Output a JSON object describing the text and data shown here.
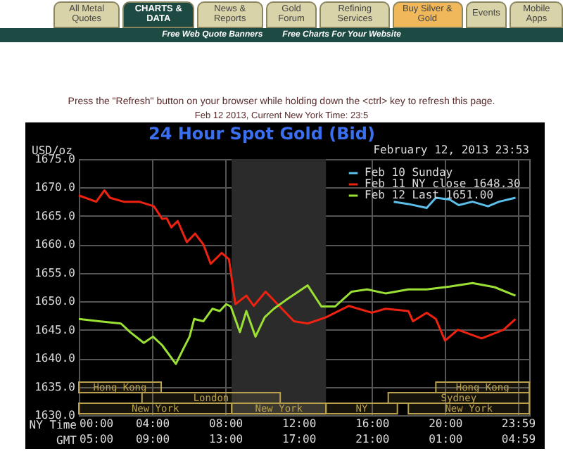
{
  "chart_data": {
    "type": "line",
    "title": "24 Hour Spot Gold (Bid)",
    "subtitle": "February 12, 2013 23:53",
    "ylabel": "USD/oz",
    "xlabel": "NY Time",
    "x2label": "GMT",
    "annotations": [
      "All Metal Quotes",
      "CHARTS & DATA",
      "News & Reports",
      "Gold Forum",
      "Refining Services",
      "Buy Silver & Gold",
      "Events",
      "Mobile Apps",
      "Free Web Quote Banners",
      "Free Charts For Your Website",
      "Press the \"Refresh\" button on your browser while holding down the <ctrl> key to refresh this page.",
      "Feb 12 2013, Current New York Time: 23:5"
    ],
    "xlim": [
      0,
      24.6
    ],
    "xticks": [
      {
        "value": 0,
        "label": "00:00"
      },
      {
        "value": 4,
        "label": "04:00"
      },
      {
        "value": 8,
        "label": "08:00"
      },
      {
        "value": 12,
        "label": "12:00"
      },
      {
        "value": 16,
        "label": "16:00"
      },
      {
        "value": 20,
        "label": "20:00"
      },
      {
        "value": 23.983,
        "label": "23:59"
      }
    ],
    "x2lim": [
      "2013-02-12T05:00",
      "2013-02-13T05:36"
    ],
    "x2ticks": [
      {
        "value": "2013-02-12T05:00",
        "label": "05:00"
      },
      {
        "value": "2013-02-12T09:00",
        "label": "09:00"
      },
      {
        "value": "2013-02-12T13:00",
        "label": "13:00"
      },
      {
        "value": "2013-02-12T17:00",
        "label": "17:00"
      },
      {
        "value": "2013-02-12T21:00",
        "label": "21:00"
      },
      {
        "value": "2013-02-13T01:00",
        "label": "01:00"
      },
      {
        "value": "2013-02-13T04:59",
        "label": "04:59"
      }
    ],
    "ylim": [
      1630,
      1675
    ],
    "yticks": [
      {
        "value": 1630,
        "label": "1630.0"
      },
      {
        "value": 1635,
        "label": "1635.0"
      },
      {
        "value": 1640,
        "label": "1640.0"
      },
      {
        "value": 1645,
        "label": "1645.0"
      },
      {
        "value": 1650,
        "label": "1650.0"
      },
      {
        "value": 1655,
        "label": "1655.0"
      },
      {
        "value": 1660,
        "label": "1660.0"
      },
      {
        "value": 1665,
        "label": "1665.0"
      },
      {
        "value": 1670,
        "label": "1670.0"
      },
      {
        "value": 1675,
        "label": "1675.0"
      }
    ],
    "grid": true,
    "legend": "top right",
    "bands": [
      {
        "axis": "x",
        "from": 8.35,
        "to": 13.5,
        "color": "#2b2b2b"
      },
      {
        "axis": "x",
        "from": 0,
        "to": 4.5,
        "label": "Hong Kong",
        "color": "#b8a050"
      },
      {
        "axis": "x",
        "from": 19.5,
        "to": 24.6,
        "label": "Hong Kong",
        "color": "#b8a050"
      },
      {
        "axis": "x",
        "from": 3.45,
        "to": 11,
        "label": "London",
        "color": "#b8a050"
      },
      {
        "axis": "x",
        "from": 16.9,
        "to": 24.6,
        "label": "Sydney",
        "color": "#b8a050"
      },
      {
        "axis": "x",
        "from": 0,
        "to": 8.35,
        "label": "New York",
        "color": "#b8a050"
      },
      {
        "axis": "x",
        "from": 8.35,
        "to": 13.5,
        "label": "New York",
        "color": "#b8a050"
      },
      {
        "axis": "x",
        "from": 13.5,
        "to": 17.4,
        "label": "NY",
        "color": "#b8a050"
      },
      {
        "axis": "x",
        "from": 18,
        "to": 24.6,
        "label": "New York",
        "color": "#b8a050"
      }
    ],
    "series": [
      {
        "name": "Feb 10 Sunday",
        "color": "#5bbfea",
        "x": [
          17.2,
          18,
          19,
          19.5,
          20.25,
          20.75,
          21.5,
          22.35,
          22.95,
          23.85
        ],
        "values": [
          1667.5,
          1667.1,
          1666.4,
          1668.2,
          1667.9,
          1666.9,
          1667.5,
          1666.7,
          1667.5,
          1668.2
        ]
      },
      {
        "name": "Feb 11 NY close 1648.30",
        "color": "#ee2211",
        "x": [
          0,
          0.95,
          1.4,
          1.7,
          2.45,
          3.3,
          4.1,
          4.55,
          4.8,
          5.05,
          5.4,
          5.9,
          6.35,
          6.8,
          7.2,
          7.8,
          8.2,
          8.55,
          9.15,
          9.55,
          10.2,
          11.75,
          12.5,
          13.5,
          14.75,
          16,
          16.75,
          18,
          18.25,
          19,
          19.5,
          20,
          20.7,
          22,
          23.2,
          23.85
        ],
        "values": [
          1668.6,
          1667.5,
          1669.5,
          1668.2,
          1667.5,
          1667.5,
          1666.7,
          1664.5,
          1664.6,
          1663,
          1664.1,
          1660.4,
          1661.9,
          1660,
          1656.6,
          1658.5,
          1657.4,
          1649.5,
          1651,
          1649.2,
          1651.7,
          1646.5,
          1646.1,
          1647.2,
          1649.2,
          1648,
          1648.7,
          1648.3,
          1646.5,
          1648,
          1646.9,
          1643.1,
          1645,
          1643.5,
          1645,
          1646.9
        ]
      },
      {
        "name": "Feb 12 Last 1651.00",
        "color": "#9be034",
        "x": [
          0,
          1.1,
          2.3,
          2.8,
          3.55,
          4.05,
          4.55,
          5.3,
          5.7,
          6.05,
          6.3,
          6.8,
          7.3,
          7.7,
          8.05,
          8.3,
          8.8,
          9.15,
          9.65,
          10.15,
          10.65,
          11.3,
          12.5,
          13.25,
          14,
          14.9,
          15.75,
          16.75,
          18,
          19,
          20.25,
          21.5,
          22.7,
          23.85
        ],
        "values": [
          1646.9,
          1646.5,
          1646.1,
          1644.6,
          1642.7,
          1643.8,
          1642.3,
          1639,
          1641.6,
          1643.8,
          1646.9,
          1646.5,
          1648.7,
          1648.3,
          1649.5,
          1649.1,
          1644.6,
          1648.3,
          1643.8,
          1647.2,
          1648.7,
          1650.2,
          1652.8,
          1649.1,
          1649.1,
          1651.7,
          1652.1,
          1651.4,
          1652.1,
          1652.1,
          1652.6,
          1653.2,
          1652.5,
          1651
        ]
      }
    ]
  }
}
